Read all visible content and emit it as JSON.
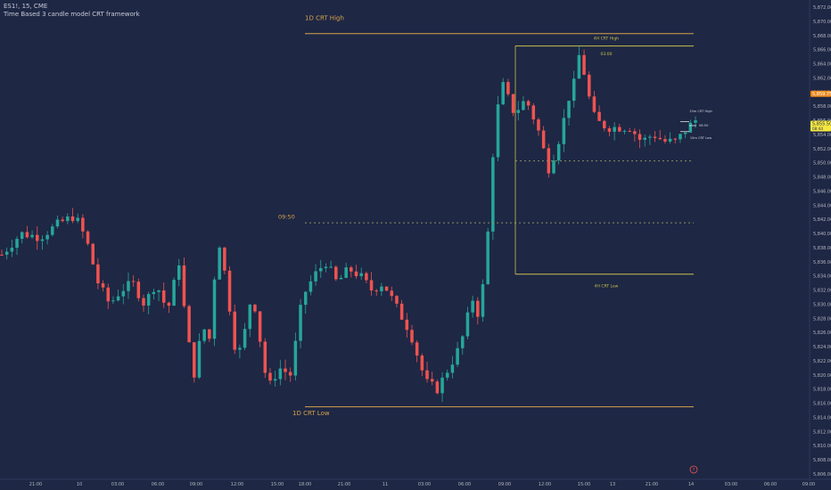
{
  "header": {
    "symbol_line": "ES1!, 15, CME",
    "indicator_name": "Time Based 3 candle model CRT framework"
  },
  "colors": {
    "background": "#1e2744",
    "bull": "#26a69a",
    "bear": "#ef5350",
    "level_1d": "#d4a24c",
    "level_4h": "#c9c04a",
    "axis_text": "#b2b5be",
    "dotted": "#8a8f60"
  },
  "chart_data": {
    "type": "candlestick",
    "y_axis": {
      "range": [
        5806,
        5872
      ],
      "ticks": [
        "5,872.00",
        "5,870.00",
        "5,868.00",
        "5,866.00",
        "5,864.00",
        "5,862.00",
        "5,860.00",
        "5,858.00",
        "5,856.00",
        "5,854.00",
        "5,852.00",
        "5,850.00",
        "5,848.00",
        "5,846.00",
        "5,844.00",
        "5,842.00",
        "5,840.00",
        "5,838.00",
        "5,836.00",
        "5,834.00",
        "5,832.00",
        "5,830.00",
        "5,828.00",
        "5,826.00",
        "5,824.00",
        "5,822.00",
        "5,820.00",
        "5,818.00",
        "5,816.00",
        "5,814.00",
        "5,812.00",
        "5,810.00",
        "5,808.00",
        "5,806.00"
      ]
    },
    "x_axis": {
      "ticks": [
        "21:00",
        "10",
        "03:00",
        "06:00",
        "09:00",
        "12:00",
        "15:00",
        "18:00",
        "21:00",
        "11",
        "03:00",
        "06:00",
        "09:00",
        "12:00",
        "15:00",
        "13",
        "21:00",
        "14",
        "03:00",
        "06:00",
        "09:00"
      ]
    },
    "price_labels": [
      {
        "value": 5859.75,
        "text": "5,859.75",
        "style": "orange"
      },
      {
        "value": 5855.5,
        "text": "5,855.50",
        "sub": "08:44",
        "style": "yellow"
      }
    ],
    "levels": [
      {
        "name": "1D CRT High",
        "value": 5868.25,
        "label": "1D CRT High",
        "kind": "1d"
      },
      {
        "name": "4H CRT High",
        "value": 5866.5,
        "label": "4H CRT High",
        "kind": "4h"
      },
      {
        "name": "03:00",
        "value": 5866.5,
        "label": "03:00",
        "kind": "4h-time"
      },
      {
        "name": "4H CRT Low",
        "value": 5834.25,
        "label": "4H CRT Low",
        "kind": "4h"
      },
      {
        "name": "1D CRT Low",
        "value": 5815.5,
        "label": "1D CRT Low",
        "kind": "1d"
      },
      {
        "name": "09:50",
        "value": 5841.5,
        "label": "09:50",
        "kind": "dotted-time"
      },
      {
        "name": "dotted-4h",
        "value": 5850.25,
        "label": "",
        "kind": "dotted"
      },
      {
        "name": "15m CRT High",
        "value": 5857.25,
        "label": "15m CRT High",
        "kind": "small"
      },
      {
        "name": "15m CRT Low",
        "value": 5853.5,
        "label": "15m CRT Low",
        "kind": "small"
      },
      {
        "name": "08:50",
        "value": 5855.25,
        "label": "08:50",
        "kind": "small-time"
      }
    ],
    "candles_count": 138,
    "flag_text": "?"
  }
}
